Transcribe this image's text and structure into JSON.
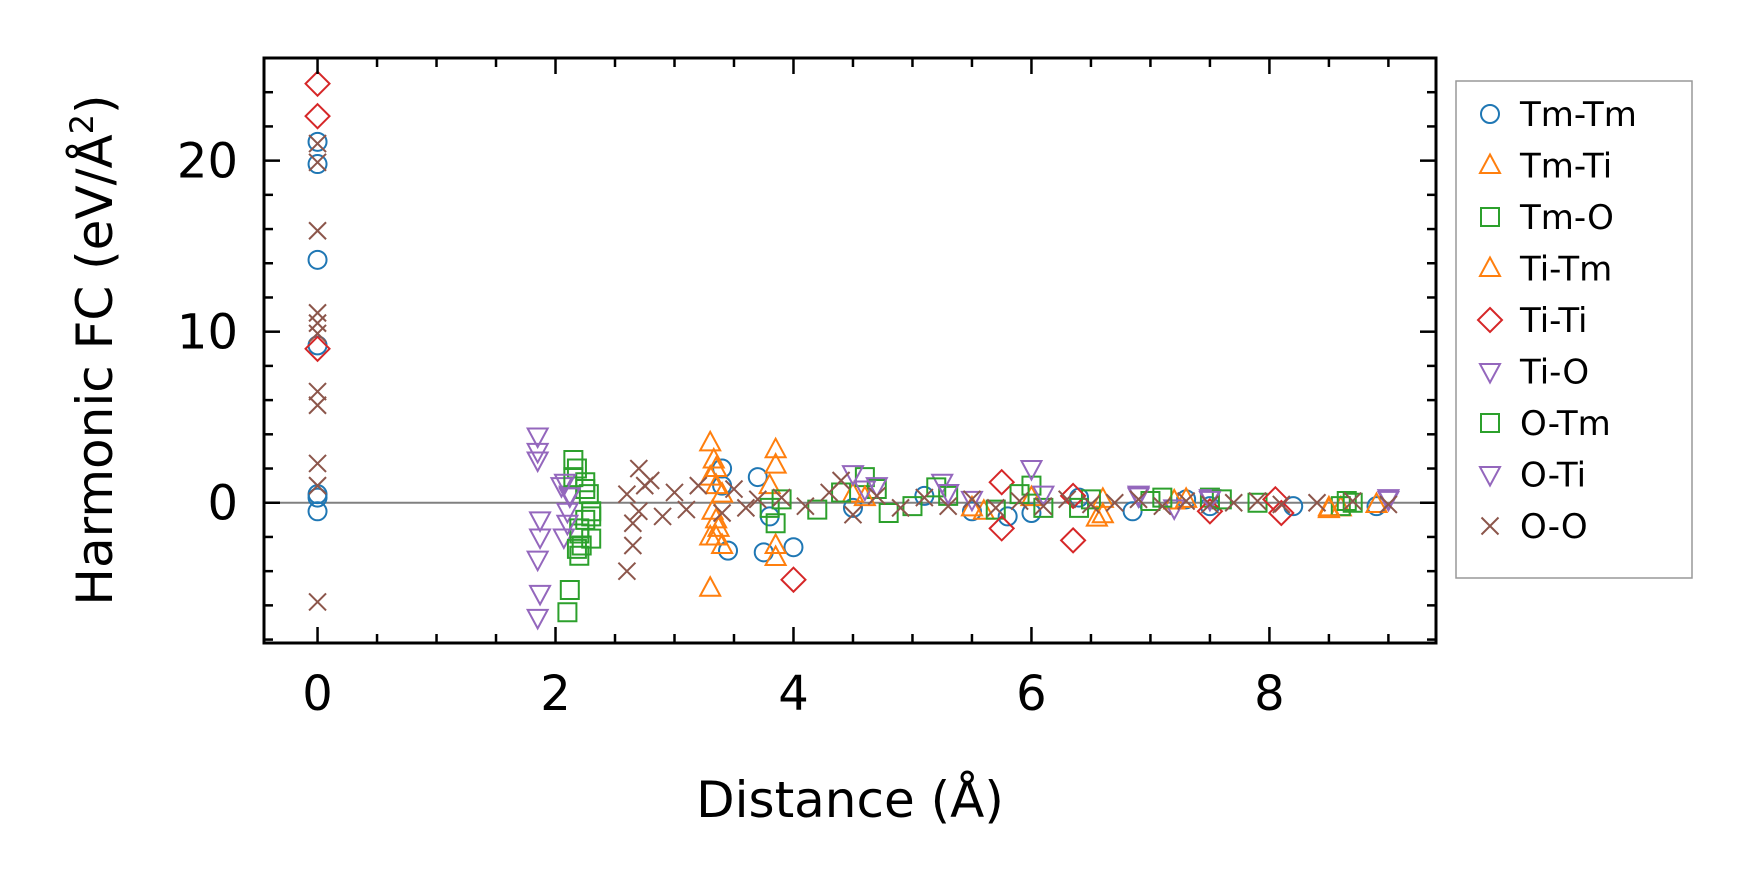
{
  "chart_data": {
    "type": "scatter",
    "xlabel": "Distance (Å)",
    "ylabel_main": "Harmonic FC (eV/Å",
    "ylabel_sup": "2",
    "ylabel_close": ")",
    "xlim": [
      -0.45,
      9.4
    ],
    "ylim": [
      -8.2,
      26
    ],
    "x_ticks": [
      0,
      2,
      4,
      6,
      8
    ],
    "y_ticks": [
      0,
      10,
      20
    ],
    "x_tick_labels": [
      "0",
      "2",
      "4",
      "6",
      "8"
    ],
    "y_tick_labels": [
      "0",
      "10",
      "20"
    ],
    "x_minor_step": 0.5,
    "y_minor_step": 2,
    "zero_line": true,
    "legend_position": "right-outside",
    "series": [
      {
        "name": "Tm-Tm",
        "marker": "circle",
        "color": "#1f77b4",
        "x": [
          0,
          0,
          0,
          0,
          0,
          0,
          0,
          3.4,
          3.45,
          3.4,
          3.7,
          3.75,
          4.0,
          3.8,
          4.5,
          5.1,
          5.5,
          5.8,
          6.0,
          6.4,
          6.85,
          7.3,
          7.5,
          8.2,
          8.9
        ],
        "y": [
          21.1,
          19.8,
          14.2,
          0.5,
          -0.5,
          9.2,
          0.3,
          2.0,
          -2.8,
          1.0,
          1.5,
          -2.9,
          -2.6,
          -0.8,
          -0.3,
          0.4,
          -0.5,
          -0.8,
          -0.6,
          0.3,
          -0.5,
          0.2,
          -0.2,
          -0.2,
          -0.2
        ]
      },
      {
        "name": "Tm-Ti",
        "marker": "triangle-up",
        "color": "#ff7f0e",
        "x": [
          3.3,
          3.33,
          3.35,
          3.37,
          3.3,
          3.32,
          3.35,
          3.4,
          3.3,
          3.85,
          3.85,
          3.8,
          4.5,
          5.6,
          6.0,
          6.55,
          6.6,
          7.3,
          8.5,
          8.6,
          8.9
        ],
        "y": [
          3.5,
          2.5,
          1.0,
          -1.5,
          -5.0,
          -0.5,
          2.0,
          -2.5,
          -2.0,
          3.1,
          -3.2,
          1.0,
          0.5,
          -0.5,
          0.3,
          -0.9,
          0.2,
          0.2,
          -0.4,
          -0.3,
          -0.1
        ]
      },
      {
        "name": "Tm-O",
        "marker": "square",
        "color": "#2ca02c",
        "x": [
          2.1,
          2.12,
          2.15,
          2.18,
          2.2,
          2.22,
          2.25,
          2.28,
          2.3,
          2.2,
          2.25,
          2.3,
          3.8,
          3.9,
          4.2,
          4.6,
          4.7,
          5.0,
          5.3,
          5.7,
          6.0,
          6.1,
          6.5,
          7.0,
          7.5,
          7.9,
          8.6,
          8.7
        ],
        "y": [
          -6.4,
          -5.1,
          2.5,
          2.0,
          -3.1,
          -2.5,
          -1.0,
          0.5,
          -2.1,
          -1.8,
          1.2,
          -0.5,
          -0.3,
          0.2,
          -0.4,
          1.5,
          0.8,
          -0.2,
          0.4,
          -0.4,
          1.0,
          -0.3,
          0.2,
          0.1,
          0.3,
          0.0,
          -0.2,
          0.0
        ]
      },
      {
        "name": "Ti-Tm",
        "marker": "triangle-up",
        "color": "#ff7f0e",
        "x": [
          3.3,
          3.35,
          3.4,
          3.35,
          3.85,
          3.85,
          4.6,
          5.5,
          6.6,
          7.2,
          8.5
        ],
        "y": [
          1.5,
          -1.0,
          0.5,
          -2.0,
          2.2,
          -2.5,
          0.3,
          -0.3,
          -0.7,
          0.1,
          -0.3
        ]
      },
      {
        "name": "Ti-Ti",
        "marker": "diamond",
        "color": "#d62728",
        "x": [
          0,
          0,
          0,
          4.0,
          5.75,
          5.75,
          6.35,
          6.35,
          7.5,
          8.05,
          8.1
        ],
        "y": [
          24.5,
          22.6,
          9.0,
          -4.5,
          1.2,
          -1.5,
          -2.2,
          0.4,
          -0.5,
          0.2,
          -0.6
        ]
      },
      {
        "name": "Ti-O",
        "marker": "triangle-down",
        "color": "#9467bd",
        "x": [
          1.85,
          1.85,
          1.87,
          1.85,
          1.87,
          1.85,
          2.05,
          2.1,
          2.07,
          2.12,
          4.5,
          4.6,
          5.25,
          5.5,
          6.0,
          6.9,
          7.2,
          7.5,
          9.0
        ],
        "y": [
          3.9,
          3.0,
          -2.0,
          -3.3,
          -5.3,
          -6.7,
          1.0,
          -0.5,
          -2.0,
          0.5,
          1.7,
          0.8,
          1.2,
          0.2,
          2.0,
          0.5,
          -0.3,
          0.3,
          0.3
        ]
      },
      {
        "name": "O-Tm",
        "marker": "square",
        "color": "#2ca02c",
        "x": [
          2.15,
          2.2,
          2.25,
          2.3,
          2.18,
          3.85,
          4.4,
          4.8,
          5.2,
          5.9,
          6.4,
          7.1,
          7.6,
          8.65
        ],
        "y": [
          1.5,
          -1.5,
          0.8,
          -0.8,
          -2.7,
          -1.2,
          0.6,
          -0.6,
          0.9,
          0.5,
          -0.3,
          0.3,
          0.2,
          0.1
        ]
      },
      {
        "name": "O-Ti",
        "marker": "triangle-down",
        "color": "#9467bd",
        "x": [
          1.85,
          1.87,
          2.08,
          2.1,
          2.12,
          4.7,
          5.3,
          6.1,
          6.9,
          7.5,
          9.0
        ],
        "y": [
          2.5,
          -1.0,
          1.2,
          -1.2,
          0.4,
          1.0,
          0.6,
          0.5,
          0.4,
          0.2,
          0.2
        ]
      },
      {
        "name": "O-O",
        "marker": "cross",
        "color": "#8c564b",
        "x": [
          0,
          0,
          0,
          0,
          0,
          0,
          0,
          0,
          0,
          0,
          0,
          2.6,
          2.65,
          2.7,
          2.75,
          2.65,
          2.6,
          2.7,
          2.8,
          2.9,
          3.0,
          3.1,
          3.2,
          3.4,
          3.5,
          3.6,
          3.7,
          3.9,
          4.1,
          4.3,
          4.4,
          4.5,
          4.7,
          4.9,
          5.1,
          5.3,
          5.5,
          5.7,
          5.9,
          6.1,
          6.3,
          6.5,
          6.7,
          6.9,
          7.1,
          7.3,
          7.5,
          7.7,
          7.9,
          8.1,
          8.4,
          8.7,
          9.0
        ],
        "y": [
          21.0,
          19.9,
          15.9,
          11.1,
          10.5,
          9.9,
          6.5,
          5.7,
          2.3,
          1.0,
          -5.8,
          -4.0,
          -2.5,
          2.0,
          1.0,
          -1.2,
          0.5,
          -0.5,
          1.3,
          -0.8,
          0.6,
          -0.4,
          1.0,
          -0.6,
          0.8,
          -0.3,
          0.2,
          0.3,
          -0.2,
          0.6,
          1.3,
          -0.7,
          0.4,
          -0.3,
          0.3,
          -0.2,
          0.2,
          -0.3,
          0.1,
          -0.2,
          0.2,
          -0.1,
          0.0,
          0.2,
          -0.2,
          0.1,
          -0.1,
          0.0,
          0.1,
          -0.1,
          0.0,
          0.1,
          -0.1
        ]
      }
    ]
  }
}
